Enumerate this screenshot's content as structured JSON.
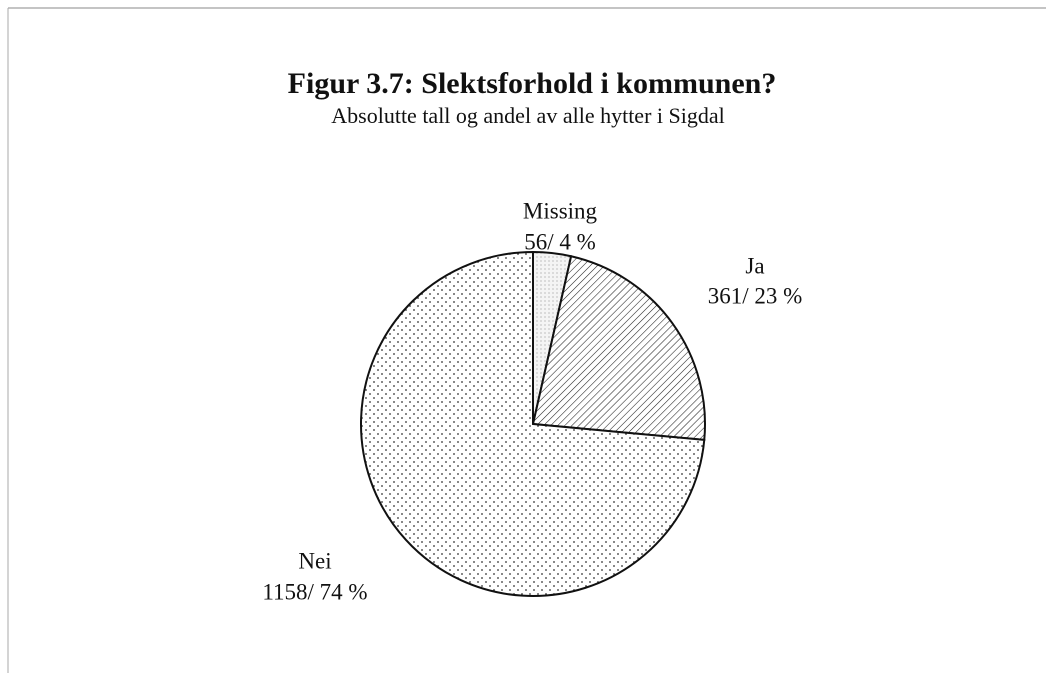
{
  "chart_data": {
    "type": "pie",
    "title": "Figur 3.7: Slektsforhold i kommunen?",
    "subtitle": "Absolutte tall og andel av alle hytter i Sigdal",
    "categories": [
      "Missing",
      "Ja",
      "Nei"
    ],
    "values": [
      56,
      361,
      1158
    ],
    "value_labels": [
      "56/ 4 %",
      "361/ 23 %",
      "1158/ 74 %"
    ]
  }
}
